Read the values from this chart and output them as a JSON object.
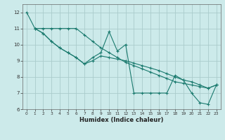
{
  "xlabel": "Humidex (Indice chaleur)",
  "bg_color": "#cceaea",
  "grid_color": "#aacccc",
  "line_color": "#1a7a6e",
  "xlim": [
    -0.5,
    23.5
  ],
  "ylim": [
    6,
    12.5
  ],
  "yticks": [
    6,
    7,
    8,
    9,
    10,
    11,
    12
  ],
  "xticks": [
    0,
    1,
    2,
    3,
    4,
    5,
    6,
    7,
    8,
    9,
    10,
    11,
    12,
    13,
    14,
    15,
    16,
    17,
    18,
    19,
    20,
    21,
    22,
    23
  ],
  "series": {
    "line1": {
      "x": [
        0,
        1,
        2,
        3,
        4,
        5,
        6,
        7,
        8,
        9,
        10,
        11,
        12,
        13,
        14,
        15,
        16,
        17,
        18,
        19,
        20,
        21,
        22,
        23
      ],
      "y": [
        12,
        11,
        10.7,
        10.2,
        9.8,
        9.5,
        9.2,
        8.8,
        9.2,
        9.5,
        10.8,
        9.6,
        10.0,
        7.0,
        7.0,
        7.0,
        7.0,
        7.0,
        8.1,
        7.8,
        7.0,
        6.4,
        6.3,
        7.5
      ]
    },
    "line2": {
      "x": [
        1,
        2,
        3,
        4,
        5,
        6,
        7,
        8,
        9,
        10,
        11,
        12,
        13,
        14,
        15,
        16,
        17,
        18,
        19,
        20,
        21,
        22,
        23
      ],
      "y": [
        11,
        11,
        11,
        11,
        11,
        11,
        10.6,
        10.2,
        9.8,
        9.5,
        9.2,
        8.9,
        8.7,
        8.5,
        8.3,
        8.1,
        7.9,
        7.7,
        7.6,
        7.5,
        7.4,
        7.3,
        7.5
      ]
    },
    "line3": {
      "x": [
        1,
        2,
        3,
        4,
        5,
        6,
        7,
        8,
        9,
        10,
        11,
        12,
        13,
        14,
        15,
        16,
        17,
        18,
        19,
        20,
        21,
        22,
        23
      ],
      "y": [
        11,
        10.7,
        10.2,
        9.8,
        9.5,
        9.2,
        8.8,
        9.0,
        9.3,
        9.2,
        9.1,
        9.0,
        8.85,
        8.7,
        8.55,
        8.4,
        8.2,
        8.0,
        7.8,
        7.7,
        7.5,
        7.3,
        7.5
      ]
    }
  }
}
